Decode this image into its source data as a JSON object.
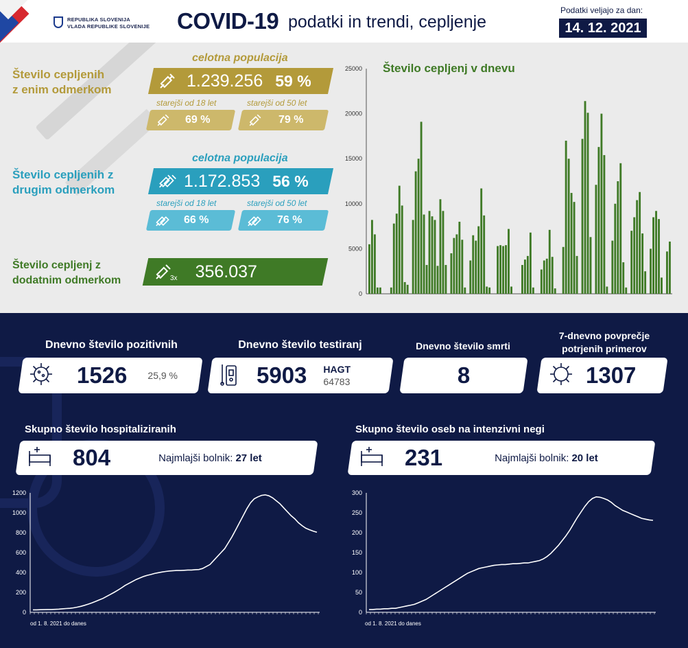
{
  "header": {
    "gov_line1": "REPUBLIKA SLOVENIJA",
    "gov_line2": "VLADA REPUBLIKE SLOVENIJE",
    "title_main": "COVID-19",
    "title_sub": "podatki in trendi, cepljenje",
    "date_label": "Podatki veljajo za dan:",
    "date": "14. 12. 2021"
  },
  "vaccination": {
    "first_dose": {
      "title_l1": "Število cepljenih",
      "title_l2": "z enim odmerkom",
      "pop_label": "celotna populacija",
      "count": "1.239.256",
      "pct": "59 %",
      "age18_label": "starejši od 18 let",
      "age18_pct": "69 %",
      "age50_label": "starejši od 50 let",
      "age50_pct": "79 %",
      "color": "#b39a3a"
    },
    "second_dose": {
      "title_l1": "Število cepljenih z",
      "title_l2": "drugim odmerkom",
      "pop_label": "celotna populacija",
      "count": "1.172.853",
      "pct": "56 %",
      "age18_label": "starejši od 18 let",
      "age18_pct": "66 %",
      "age50_label": "starejši od 50 let",
      "age50_pct": "76 %",
      "color": "#2a9fbd"
    },
    "booster": {
      "title_l1": "Število cepljenj z",
      "title_l2": "dodatnim odmerkom",
      "count": "356.037",
      "icon_label": "3x",
      "color": "#3f7a26"
    }
  },
  "daily_vaccination_chart": {
    "title": "Število cepljenj v dnevu",
    "chart_data": {
      "type": "bar",
      "ylim": [
        0,
        25000
      ],
      "yticks": [
        0,
        5000,
        10000,
        15000,
        20000,
        25000
      ],
      "values": [
        5500,
        8200,
        6600,
        700,
        700,
        0,
        0,
        0,
        700,
        7800,
        8900,
        12000,
        9800,
        1300,
        1000,
        0,
        8200,
        13600,
        15000,
        19100,
        8800,
        3200,
        9200,
        8600,
        8200,
        3100,
        10500,
        9200,
        3200,
        0,
        4500,
        6200,
        6600,
        8000,
        6000,
        700,
        0,
        3700,
        6500,
        5900,
        7500,
        11700,
        8700,
        800,
        700,
        0,
        0,
        5300,
        5400,
        5300,
        5400,
        7200,
        800,
        0,
        0,
        0,
        3200,
        3800,
        4200,
        6800,
        700,
        0,
        0,
        2700,
        3700,
        3900,
        7100,
        4100,
        600,
        0,
        0,
        5200,
        17000,
        15000,
        11200,
        10200,
        4200,
        0,
        17200,
        21400,
        20100,
        6300,
        0,
        12100,
        16300,
        20000,
        15400,
        800,
        0,
        5900,
        10000,
        12500,
        14500,
        3500,
        700,
        0,
        7000,
        8500,
        10400,
        11300,
        6700,
        2500,
        0,
        5000,
        8500,
        9200,
        8300,
        1800,
        0,
        4700,
        5800
      ],
      "color": "#3f7a26"
    }
  },
  "stats": {
    "positive": {
      "title": "Dnevno število pozitivnih",
      "value": "1526",
      "pct": "25,9 %"
    },
    "tests": {
      "title": "Dnevno število testiranj",
      "value": "5903",
      "hagt_label": "HAGT",
      "hagt_value": "64783"
    },
    "deaths": {
      "title": "Dnevno število smrti",
      "value": "8"
    },
    "avg7": {
      "title_l1": "7-dnevno povprečje",
      "title_l2": "potrjenih primerov",
      "value": "1307"
    }
  },
  "hospital": {
    "title": "Skupno število hospitaliziranih",
    "value": "804",
    "youngest_label": "Najmlajši bolnik:",
    "youngest_value": "27 let",
    "x_note": "od 1. 8. 2021 do danes",
    "chart_data": {
      "type": "line",
      "ylim": [
        0,
        1200
      ],
      "yticks": [
        0,
        200,
        400,
        600,
        800,
        1000,
        1200
      ],
      "values": [
        25,
        25,
        26,
        27,
        28,
        28,
        30,
        32,
        35,
        38,
        40,
        45,
        52,
        60,
        70,
        82,
        95,
        110,
        125,
        140,
        160,
        180,
        200,
        222,
        245,
        270,
        290,
        310,
        330,
        345,
        360,
        372,
        380,
        390,
        398,
        405,
        410,
        415,
        418,
        420,
        420,
        422,
        425,
        425,
        428,
        430,
        440,
        460,
        480,
        520,
        560,
        600,
        640,
        700,
        760,
        830,
        900,
        970,
        1040,
        1100,
        1140,
        1160,
        1175,
        1180,
        1170,
        1150,
        1120,
        1090,
        1050,
        1010,
        970,
        940,
        900,
        870,
        845,
        830,
        815,
        804
      ],
      "color": "#ffffff"
    }
  },
  "icu": {
    "title": "Skupno število oseb na intenzivni negi",
    "value": "231",
    "youngest_label": "Najmlajši bolnik:",
    "youngest_value": "20 let",
    "x_note": "od 1. 8. 2021 do danes",
    "chart_data": {
      "type": "line",
      "ylim": [
        0,
        300
      ],
      "yticks": [
        0,
        50,
        100,
        150,
        200,
        250,
        300
      ],
      "values": [
        7,
        7,
        8,
        8,
        9,
        9,
        10,
        10,
        12,
        14,
        16,
        18,
        20,
        24,
        28,
        32,
        38,
        44,
        50,
        56,
        62,
        68,
        74,
        80,
        86,
        92,
        98,
        102,
        106,
        110,
        112,
        114,
        116,
        118,
        119,
        120,
        120,
        121,
        122,
        122,
        123,
        124,
        124,
        126,
        128,
        130,
        134,
        140,
        148,
        158,
        168,
        180,
        192,
        206,
        222,
        238,
        252,
        266,
        278,
        286,
        290,
        289,
        286,
        282,
        276,
        268,
        262,
        256,
        252,
        248,
        244,
        240,
        236,
        234,
        232,
        231
      ],
      "color": "#ffffff"
    }
  }
}
